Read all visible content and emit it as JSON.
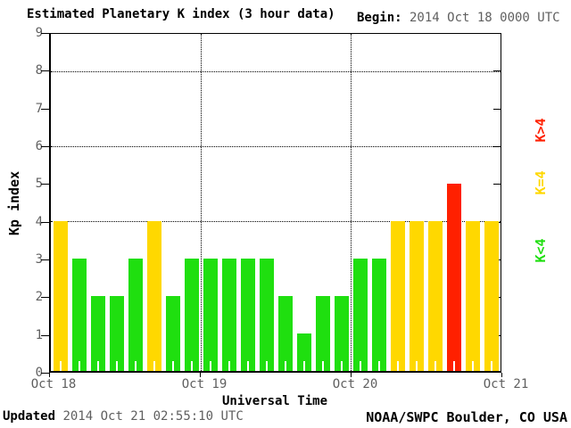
{
  "title": "Estimated Planetary K index (3 hour data)",
  "begin": {
    "label": "Begin:",
    "value": "2014 Oct 18 0000 UTC"
  },
  "footer": {
    "updated_label": "Updated",
    "updated_value": "2014 Oct 21 02:55:10 UTC",
    "credit": "NOAA/SWPC Boulder, CO USA"
  },
  "colors": {
    "green": "#1fdf0f",
    "yellow": "#ffd800",
    "red": "#ff2000",
    "gray_text": "#5f5f5f"
  },
  "chart_data": {
    "type": "bar",
    "title": "Estimated Planetary K index (3 hour data)",
    "xlabel": "Universal Time",
    "ylabel": "Kp index",
    "ylim": [
      0,
      9
    ],
    "yticks": [
      0,
      1,
      2,
      3,
      4,
      5,
      6,
      7,
      8,
      9
    ],
    "gridlines_y": [
      4,
      6,
      8
    ],
    "grid": "dotted horizontal at 4,6,8 and vertical at day boundaries",
    "x_day_labels": [
      "Oct 18",
      "Oct 19",
      "Oct 20",
      "Oct 21"
    ],
    "days": 3,
    "bars_per_day": 8,
    "bar_interval_hours": 3,
    "values": [
      4,
      3,
      2,
      2,
      3,
      4,
      2,
      3,
      3,
      3,
      3,
      3,
      2,
      1,
      2,
      2,
      3,
      3,
      4,
      4,
      4,
      5,
      4,
      4
    ],
    "legend": [
      {
        "label": "K>4",
        "color": "#ff2000",
        "rule": "above4"
      },
      {
        "label": "K=4",
        "color": "#ffd800",
        "rule": "equal4"
      },
      {
        "label": "K<4",
        "color": "#1fdf0f",
        "rule": "below4"
      }
    ],
    "legend_position": "right, rotated vertical"
  }
}
